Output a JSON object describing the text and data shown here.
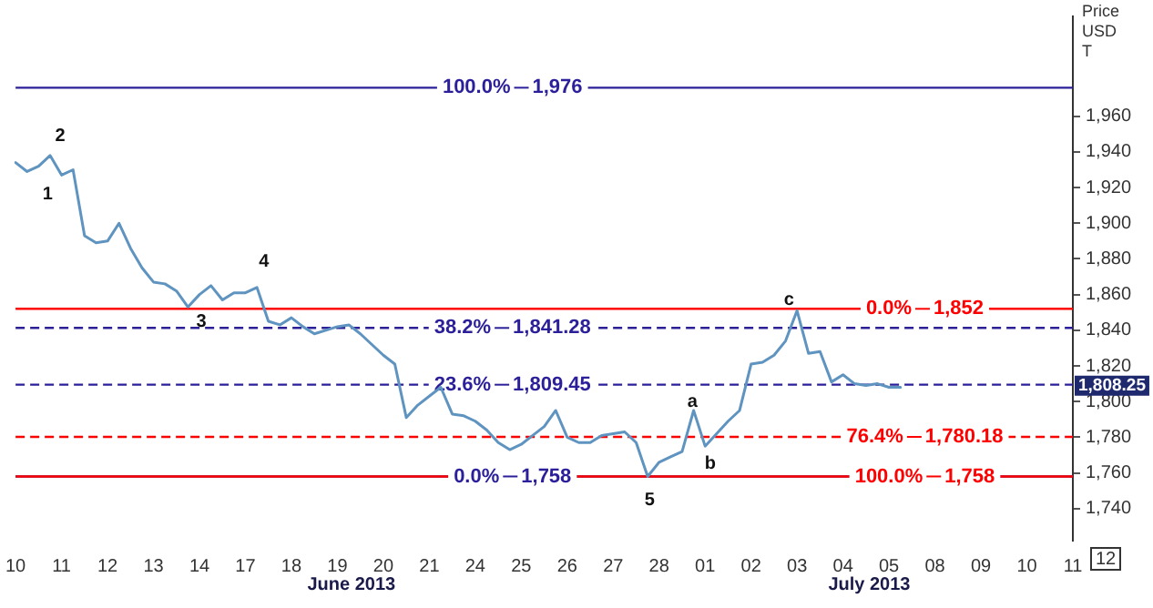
{
  "chart_data": {
    "type": "line",
    "ylabel": "Price USD T",
    "categories": [
      "10",
      null,
      null,
      null,
      "11",
      null,
      null,
      null,
      "12",
      null,
      null,
      null,
      "13",
      null,
      null,
      null,
      "14",
      null,
      null,
      null,
      "17",
      null,
      null,
      null,
      "18",
      null,
      null,
      null,
      "19",
      null,
      null,
      null,
      "20",
      null,
      null,
      null,
      "21",
      null,
      null,
      null,
      "24",
      null,
      null,
      null,
      "25",
      null,
      null,
      null,
      "26",
      null,
      null,
      null,
      "27",
      null,
      null,
      null,
      "28",
      null,
      null,
      null,
      "01",
      null,
      null,
      null,
      "02",
      null,
      null,
      null,
      "03",
      null,
      null,
      null,
      "04",
      null,
      null,
      null,
      "05",
      null,
      null,
      null,
      "08",
      null,
      null,
      null,
      "09",
      null,
      null,
      null,
      "10",
      null,
      null,
      null,
      "11"
    ],
    "series": [
      {
        "color": "#5f94c0",
        "values": [
          1934,
          1929,
          1932,
          1938,
          1927,
          1930,
          1893,
          1889,
          1890,
          1900,
          1886,
          1875,
          1867,
          1866,
          1862,
          1853,
          1860,
          1865,
          1857,
          1861,
          1861,
          1864,
          1845,
          1843,
          1847,
          1842,
          1838,
          1840,
          1842,
          1843,
          1838,
          1832,
          1826,
          1821,
          1791,
          1798,
          1803,
          1808,
          1793,
          1792,
          1789,
          1784,
          1777,
          1773,
          1776,
          1781,
          1786,
          1795,
          1780,
          1777,
          1777,
          1781,
          1782,
          1783,
          1777,
          1758,
          1766,
          1769,
          1772,
          1795,
          1775,
          1782,
          1789,
          1795,
          1821,
          1822,
          1826,
          1834,
          1851,
          1827,
          1828,
          1811,
          1815,
          1810,
          1809,
          1810,
          1808,
          1808,
          null,
          null,
          null,
          null,
          null,
          null,
          null,
          null,
          null,
          null,
          null,
          null,
          null,
          null,
          null
        ]
      }
    ],
    "ylim": [
      1722,
      2016
    ],
    "yticks": [
      {
        "value": 1740,
        "label": "1,740"
      },
      {
        "value": 1760,
        "label": "1,760"
      },
      {
        "value": 1780,
        "label": "1,780"
      },
      {
        "value": 1800,
        "label": "1,800"
      },
      {
        "value": 1820,
        "label": "1,820"
      },
      {
        "value": 1840,
        "label": "1,840"
      },
      {
        "value": 1860,
        "label": "1,860"
      },
      {
        "value": 1880,
        "label": "1,880"
      },
      {
        "value": 1900,
        "label": "1,900"
      },
      {
        "value": 1920,
        "label": "1,920"
      },
      {
        "value": 1940,
        "label": "1,940"
      },
      {
        "value": 1960,
        "label": "1,960"
      }
    ],
    "ref_lines": [
      {
        "axis": "y",
        "value": 1976,
        "label": "1,976",
        "color": "#2b1f9a",
        "line_style": "solid"
      },
      {
        "axis": "y",
        "value": 1841.28,
        "label": "1,841.28",
        "color": "#2b1f9a",
        "line_style": "dashed"
      },
      {
        "axis": "y",
        "value": 1809.45,
        "label": "1,809.45",
        "color": "#2b1f9a",
        "line_style": "dashed"
      },
      {
        "axis": "y",
        "value": 1758,
        "label": "1,758",
        "color": "#2b1f9a",
        "line_style": "solid"
      },
      {
        "axis": "y",
        "value": 1852,
        "label": "1,852",
        "color": "#ff0000",
        "line_style": "solid"
      },
      {
        "axis": "y",
        "value": 1780.18,
        "label": "1,780.18",
        "color": "#ff0000",
        "line_style": "dashed"
      },
      {
        "axis": "y",
        "value": 1758,
        "label": "1,758",
        "color": "#ff0000",
        "line_style": "solid"
      }
    ],
    "annotations": [
      "1",
      "2",
      "3",
      "4",
      "5",
      "a",
      "b",
      "c",
      "100.0%",
      "38.2%",
      "23.6%",
      "0.0%",
      "0.0%",
      "76.4%",
      "100.0%",
      "1,808.25",
      "June 2013",
      "July 2013",
      "12"
    ],
    "grid": false,
    "legend": false,
    "marker": "none",
    "line_style": "solid"
  }
}
